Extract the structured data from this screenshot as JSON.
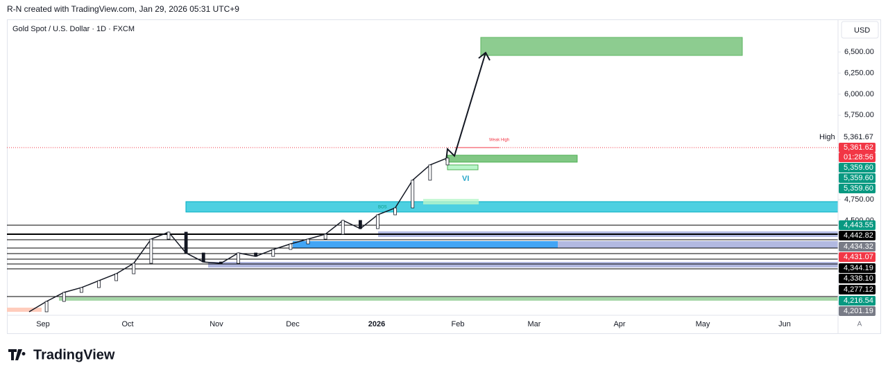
{
  "header": {
    "credit": "R-N created with TradingView.com, Jan 29, 2026 05:31 UTC+9"
  },
  "chart": {
    "title": "Gold Spot / U.S. Dollar · 1D · FXCM",
    "currency": "USD",
    "ylim": [
      3378,
      6870
    ],
    "yticks": [
      {
        "value": 6500,
        "label": "6,500.00"
      },
      {
        "value": 6250,
        "label": "6,250.00"
      },
      {
        "value": 6000,
        "label": "6,000.00"
      },
      {
        "value": 5750,
        "label": "5,750.00"
      },
      {
        "value": 4750,
        "label": "4,750.00"
      },
      {
        "value": 4500,
        "label": "4,500.00"
      }
    ],
    "xlabels": [
      "Sep",
      "Oct",
      "Nov",
      "Dec",
      "2026",
      "Feb",
      "Mar",
      "Apr",
      "May",
      "Jun"
    ],
    "closes": [
      3419,
      3542,
      3649,
      3706,
      3788,
      3870,
      3994,
      4281,
      4364,
      4117,
      4010,
      3994,
      4117,
      4076,
      4158,
      4224,
      4281,
      4339,
      4503,
      4405,
      4569,
      4651,
      4980,
      5161,
      5243
    ],
    "high_label": "High",
    "price_tags": [
      {
        "label": "5,361.67",
        "color": "#ffffff"
      },
      {
        "label": "5,361.62",
        "color": "#f23645"
      },
      {
        "label": "01:28:56",
        "color": "#f23645"
      },
      {
        "label": "5,359.60",
        "color": "#089981"
      },
      {
        "label": "5,359.60",
        "color": "#089981"
      },
      {
        "label": "5,359.60",
        "color": "#089981"
      },
      {
        "label": "4,443.55",
        "color": "#089981"
      },
      {
        "label": "4,442.82",
        "color": "#000000"
      },
      {
        "label": "4,434.32",
        "color": "#787b86"
      },
      {
        "label": "4,431.07",
        "color": "#f23645"
      },
      {
        "label": "4,344.19",
        "color": "#000000"
      },
      {
        "label": "4,338.10",
        "color": "#000000"
      },
      {
        "label": "4,277.12",
        "color": "#000000"
      },
      {
        "label": "4,216.54",
        "color": "#089981"
      },
      {
        "label": "4,201.19",
        "color": "#787b86"
      }
    ],
    "annotations": {
      "weak_high": "Weak High",
      "vi": "VI",
      "bos": "BOS"
    },
    "scale_mode": "A"
  },
  "footer": {
    "brand": "TradingView"
  }
}
